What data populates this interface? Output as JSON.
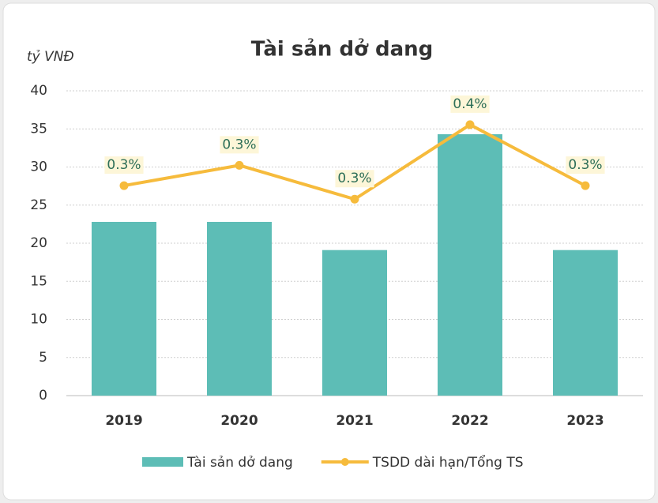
{
  "chart_data": {
    "type": "bar",
    "title": "Tài sản dở dang",
    "y_label": "tỷ VNĐ",
    "categories": [
      "2019",
      "2020",
      "2021",
      "2022",
      "2023"
    ],
    "series": [
      {
        "name": "Tài sản dở dang",
        "type": "bar",
        "color": "#5dbdb6",
        "values": [
          22.8,
          22.8,
          19.1,
          34.3,
          19.1
        ]
      },
      {
        "name": "TSDD dài hạn/Tổng TS",
        "type": "line",
        "axis": "y2",
        "color": "#f6bb3c",
        "values": [
          0.31,
          0.34,
          0.29,
          0.4,
          0.31
        ],
        "value_labels": [
          "0.3%",
          "0.3%",
          "0.3%",
          "0.4%",
          "0.3%"
        ]
      }
    ],
    "ylim": [
      0,
      40
    ],
    "yticks": [
      0,
      5,
      10,
      15,
      20,
      25,
      30,
      35,
      40
    ],
    "y2lim": [
      0,
      0.45
    ],
    "grid": true
  }
}
